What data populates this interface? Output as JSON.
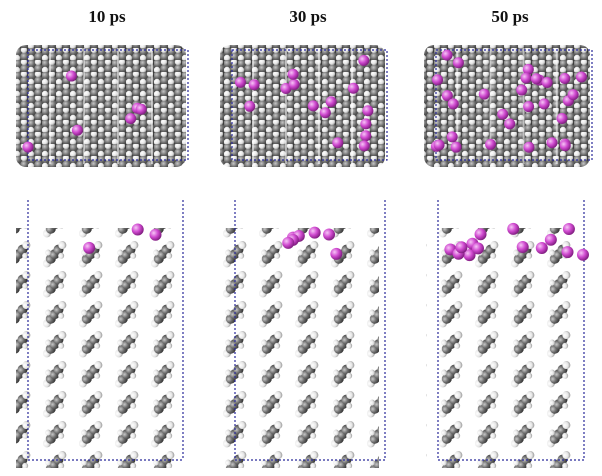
{
  "panels": [
    {
      "label": "10 ps"
    },
    {
      "label": "30 ps"
    },
    {
      "label": "50 ps"
    }
  ]
}
